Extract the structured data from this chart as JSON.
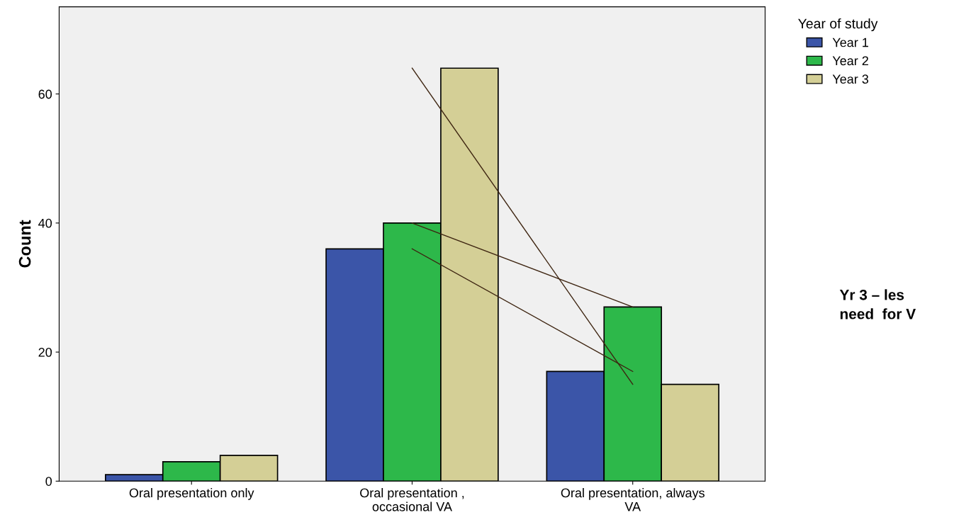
{
  "chart_data": {
    "type": "bar",
    "ylabel": "Count",
    "legend_title": "Year of study",
    "legend": "top right",
    "grid": false,
    "categories": [
      "Oral presentation only",
      "Oral presentation ,\noccasional VA",
      "Oral presentation, always\nVA"
    ],
    "series": [
      {
        "name": "Year 1",
        "color": "#3b55a8",
        "values": [
          1,
          36,
          17
        ]
      },
      {
        "name": "Year 2",
        "color": "#2db84a",
        "values": [
          3,
          40,
          27
        ]
      },
      {
        "name": "Year 3",
        "color": "#d4cf96",
        "values": [
          4,
          64,
          15
        ]
      },
      {
        "type": "line",
        "color": "#3d2410",
        "values": [
          null,
          36,
          17
        ]
      },
      {
        "type": "line",
        "color": "#3d2410",
        "values": [
          null,
          40,
          27
        ]
      },
      {
        "type": "line",
        "color": "#3d2410",
        "values": [
          null,
          64,
          15
        ]
      }
    ],
    "ylim": [
      0,
      73.5
    ],
    "yticks": [
      0,
      20,
      40,
      60
    ],
    "annotations": [
      "Yr 3 – les\nneed  for V"
    ]
  }
}
